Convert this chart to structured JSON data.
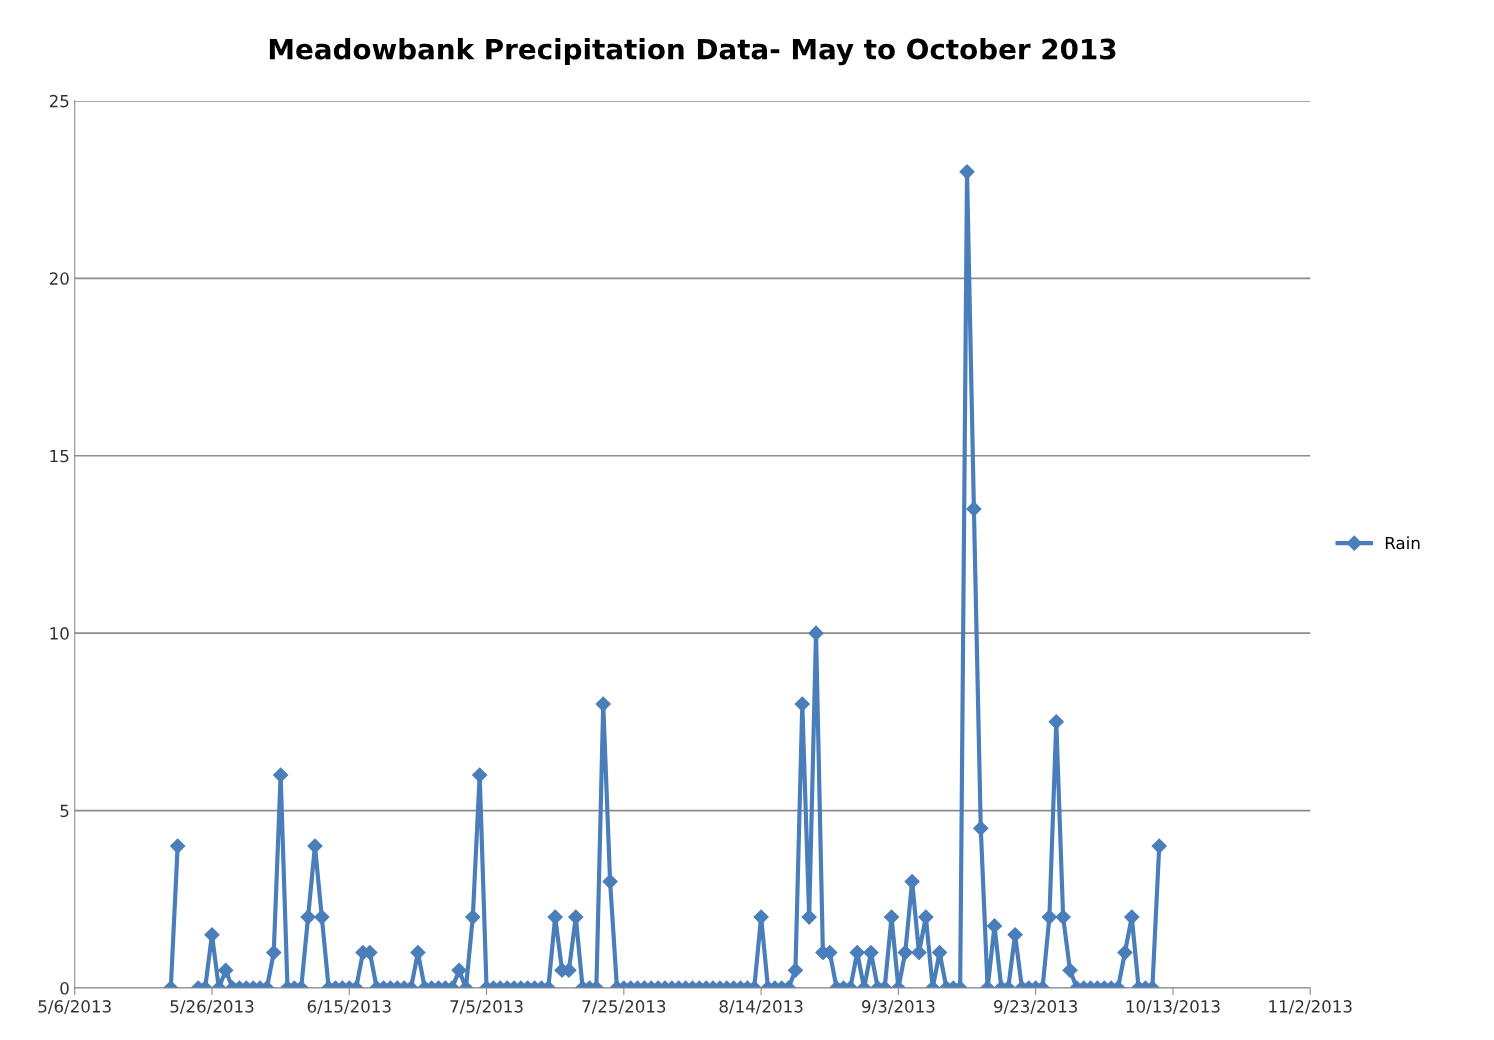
{
  "chart_data": {
    "type": "line",
    "title": "Meadowbank Precipitation Data- May to October 2013",
    "x": [
      "2013-05-20",
      "2013-05-21",
      "2013-05-22",
      "2013-05-23",
      "2013-05-24",
      "2013-05-25",
      "2013-05-26",
      "2013-05-27",
      "2013-05-28",
      "2013-05-29",
      "2013-05-30",
      "2013-05-31",
      "2013-06-01",
      "2013-06-02",
      "2013-06-03",
      "2013-06-04",
      "2013-06-05",
      "2013-06-06",
      "2013-06-07",
      "2013-06-08",
      "2013-06-09",
      "2013-06-10",
      "2013-06-11",
      "2013-06-12",
      "2013-06-13",
      "2013-06-14",
      "2013-06-15",
      "2013-06-16",
      "2013-06-17",
      "2013-06-18",
      "2013-06-19",
      "2013-06-20",
      "2013-06-21",
      "2013-06-22",
      "2013-06-23",
      "2013-06-24",
      "2013-06-25",
      "2013-06-26",
      "2013-06-27",
      "2013-06-28",
      "2013-06-29",
      "2013-06-30",
      "2013-07-01",
      "2013-07-02",
      "2013-07-03",
      "2013-07-04",
      "2013-07-05",
      "2013-07-06",
      "2013-07-07",
      "2013-07-08",
      "2013-07-09",
      "2013-07-10",
      "2013-07-11",
      "2013-07-12",
      "2013-07-13",
      "2013-07-14",
      "2013-07-15",
      "2013-07-16",
      "2013-07-17",
      "2013-07-18",
      "2013-07-19",
      "2013-07-20",
      "2013-07-21",
      "2013-07-22",
      "2013-07-23",
      "2013-07-24",
      "2013-07-25",
      "2013-07-26",
      "2013-07-27",
      "2013-07-28",
      "2013-07-29",
      "2013-07-30",
      "2013-07-31",
      "2013-08-01",
      "2013-08-02",
      "2013-08-03",
      "2013-08-04",
      "2013-08-05",
      "2013-08-06",
      "2013-08-07",
      "2013-08-08",
      "2013-08-09",
      "2013-08-10",
      "2013-08-11",
      "2013-08-12",
      "2013-08-13",
      "2013-08-14",
      "2013-08-15",
      "2013-08-16",
      "2013-08-17",
      "2013-08-18",
      "2013-08-19",
      "2013-08-20",
      "2013-08-21",
      "2013-08-22",
      "2013-08-23",
      "2013-08-24",
      "2013-08-25",
      "2013-08-26",
      "2013-08-27",
      "2013-08-28",
      "2013-08-29",
      "2013-08-30",
      "2013-08-31",
      "2013-09-01",
      "2013-09-02",
      "2013-09-03",
      "2013-09-04",
      "2013-09-05",
      "2013-09-06",
      "2013-09-07",
      "2013-09-08",
      "2013-09-09",
      "2013-09-10",
      "2013-09-11",
      "2013-09-12",
      "2013-09-13",
      "2013-09-14",
      "2013-09-15",
      "2013-09-16",
      "2013-09-17",
      "2013-09-18",
      "2013-09-19",
      "2013-09-20",
      "2013-09-21",
      "2013-09-22",
      "2013-09-23",
      "2013-09-24",
      "2013-09-25",
      "2013-09-26",
      "2013-09-27",
      "2013-09-28",
      "2013-09-29",
      "2013-09-30",
      "2013-10-01",
      "2013-10-02",
      "2013-10-03",
      "2013-10-04",
      "2013-10-05",
      "2013-10-06",
      "2013-10-07",
      "2013-10-08",
      "2013-10-09",
      "2013-10-10",
      "2013-10-11"
    ],
    "series": [
      {
        "name": "Rain",
        "color": "#4a7ebb",
        "values": [
          0,
          4,
          null,
          null,
          0,
          0,
          1.5,
          0,
          0.5,
          0,
          0,
          0,
          0,
          0,
          0,
          1,
          6,
          0,
          0,
          0,
          2,
          4,
          2,
          0,
          0,
          0,
          0,
          0,
          1,
          1,
          0,
          0,
          0,
          0,
          0,
          0,
          1,
          0,
          0,
          0,
          0,
          0,
          0.5,
          0,
          2,
          6,
          0,
          0,
          0,
          0,
          0,
          0,
          0,
          0,
          0,
          0,
          2,
          0.5,
          0.5,
          2,
          0,
          0,
          0,
          8,
          3,
          0,
          0,
          0,
          0,
          0,
          0,
          0,
          0,
          0,
          0,
          0,
          0,
          0,
          0,
          0,
          0,
          0,
          0,
          0,
          0,
          0,
          2,
          0,
          0,
          0,
          0,
          0.5,
          8,
          2,
          10,
          1,
          1,
          0,
          0,
          0,
          1,
          0,
          1,
          0,
          0,
          2,
          0,
          1,
          3,
          1,
          2,
          0,
          1,
          0,
          0,
          0,
          23,
          13.5,
          4.5,
          0,
          1.75,
          0,
          0,
          1.5,
          0,
          0,
          0,
          0,
          2,
          7.5,
          2,
          0.5,
          0,
          0,
          0,
          0,
          0,
          0,
          0,
          1,
          2,
          0,
          0,
          0,
          4
        ]
      }
    ],
    "xlim": [
      "2013-05-06",
      "2013-11-02"
    ],
    "xticks": [
      {
        "value": "2013-05-06",
        "label": "5/6/2013"
      },
      {
        "value": "2013-05-26",
        "label": "5/26/2013"
      },
      {
        "value": "2013-06-15",
        "label": "6/15/2013"
      },
      {
        "value": "2013-07-05",
        "label": "7/5/2013"
      },
      {
        "value": "2013-07-25",
        "label": "7/25/2013"
      },
      {
        "value": "2013-08-14",
        "label": "8/14/2013"
      },
      {
        "value": "2013-09-03",
        "label": "9/3/2013"
      },
      {
        "value": "2013-09-23",
        "label": "9/23/2013"
      },
      {
        "value": "2013-10-13",
        "label": "10/13/2013"
      },
      {
        "value": "2013-11-02",
        "label": "11/2/2013"
      }
    ],
    "ylim": [
      0,
      25
    ],
    "yticks": [
      0,
      5,
      10,
      15,
      20,
      25
    ],
    "grid": "y",
    "legend": "right",
    "marker": "diamond",
    "line_style": "solid"
  }
}
